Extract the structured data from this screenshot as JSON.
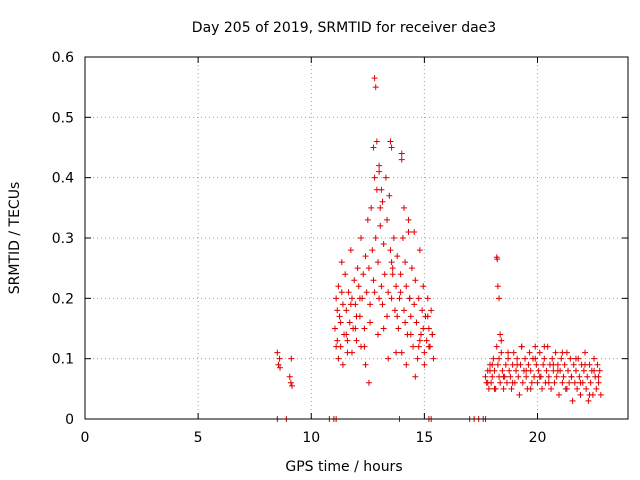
{
  "chart_data": {
    "type": "scatter",
    "title": "Day 205 of 2019, SRMTID for receiver dae3",
    "xlabel": "GPS time / hours",
    "ylabel": "SRMTID / TECUs",
    "xlim": [
      0,
      24
    ],
    "ylim": [
      0,
      0.6
    ],
    "x_ticks": [
      0,
      5,
      10,
      15,
      20
    ],
    "x_tick_labels": [
      "0",
      "5",
      "10",
      "15",
      "20"
    ],
    "y_ticks": [
      0,
      0.1,
      0.2,
      0.3,
      0.4,
      0.5,
      0.6
    ],
    "y_tick_labels": [
      "0",
      "0.1",
      "0.2",
      "0.3",
      "0.4",
      "0.5",
      "0.6"
    ],
    "grid": true,
    "marker": "+",
    "color": "#e00000",
    "series": [
      {
        "name": "SRMTID",
        "x": [
          8.5,
          8.55,
          8.6,
          8.62,
          9.05,
          9.1,
          9.12,
          9.15,
          11.05,
          11.1,
          11.15,
          11.2,
          11.25,
          11.3,
          11.35,
          11.4,
          11.45,
          11.5,
          11.55,
          11.6,
          11.65,
          11.7,
          11.75,
          11.8,
          11.85,
          11.9,
          11.95,
          12.0,
          12.05,
          12.1,
          12.15,
          12.2,
          12.25,
          12.3,
          12.35,
          12.4,
          12.45,
          12.5,
          12.55,
          12.6,
          12.65,
          12.7,
          12.75,
          12.8,
          12.85,
          12.9,
          12.95,
          13.0,
          13.05,
          13.1,
          13.15,
          13.2,
          13.25,
          13.3,
          13.35,
          13.4,
          13.45,
          13.5,
          13.55,
          13.6,
          13.65,
          13.7,
          13.75,
          13.8,
          13.85,
          13.9,
          13.95,
          14.0,
          14.05,
          14.1,
          14.15,
          14.2,
          14.25,
          14.3,
          14.35,
          14.4,
          14.45,
          14.5,
          14.55,
          14.6,
          14.65,
          14.7,
          14.75,
          14.8,
          14.85,
          14.9,
          14.95,
          15.0,
          15.05,
          15.1,
          15.15,
          15.2,
          15.25,
          15.3,
          15.35,
          15.4,
          12.8,
          12.85,
          12.9,
          13.0,
          13.05,
          13.1,
          13.5,
          13.55,
          14.0,
          14.1,
          14.3,
          11.1,
          11.2,
          11.3,
          11.4,
          11.6,
          11.8,
          12.0,
          12.2,
          12.4,
          12.6,
          12.8,
          13.0,
          13.2,
          13.4,
          13.6,
          13.8,
          14.0,
          14.2,
          14.4,
          14.6,
          14.8,
          15.0,
          15.2,
          11.15,
          11.35,
          11.55,
          11.75,
          11.95,
          12.15,
          12.35,
          12.55,
          12.75,
          12.95,
          13.15,
          13.35,
          13.55,
          13.75,
          13.95,
          14.15,
          14.35,
          14.55,
          14.75,
          14.95,
          15.15,
          15.35,
          17.7,
          17.75,
          17.8,
          17.85,
          17.9,
          17.95,
          18.0,
          18.05,
          18.1,
          18.15,
          18.2,
          18.25,
          18.3,
          18.35,
          18.4,
          18.45,
          18.5,
          18.55,
          18.6,
          18.65,
          18.7,
          18.75,
          18.8,
          18.85,
          18.9,
          18.95,
          19.0,
          19.05,
          19.1,
          19.15,
          19.2,
          19.25,
          19.3,
          19.35,
          19.4,
          19.45,
          19.5,
          19.55,
          19.6,
          19.65,
          19.7,
          19.75,
          19.8,
          19.85,
          19.9,
          19.95,
          20.0,
          20.05,
          20.1,
          20.15,
          20.2,
          20.25,
          20.3,
          20.35,
          20.4,
          20.45,
          20.5,
          20.55,
          20.6,
          20.65,
          20.7,
          20.75,
          20.8,
          20.85,
          20.9,
          20.95,
          21.0,
          21.05,
          21.1,
          21.15,
          21.2,
          21.25,
          21.3,
          21.35,
          21.4,
          21.45,
          21.5,
          21.55,
          21.6,
          21.65,
          21.7,
          21.75,
          21.8,
          21.85,
          21.9,
          21.95,
          22.0,
          22.05,
          22.1,
          22.15,
          22.2,
          22.25,
          22.3,
          22.35,
          22.4,
          22.45,
          22.5,
          22.55,
          22.6,
          22.65,
          22.7,
          22.75,
          22.8,
          18.2,
          18.22,
          18.25,
          18.3,
          18.35,
          18.4,
          17.8,
          17.9,
          18.0,
          18.1,
          18.3,
          18.5,
          18.7,
          18.9,
          19.1,
          19.3,
          19.5,
          19.7,
          19.9,
          20.1,
          20.3,
          20.5,
          20.7,
          20.9,
          21.1,
          21.3,
          21.5,
          21.7,
          21.9,
          22.1,
          22.3,
          22.5,
          22.7,
          8.5,
          8.9,
          10.8,
          11.0,
          11.1,
          13.9,
          15.2,
          15.3,
          17.0,
          17.2,
          17.4,
          17.6,
          17.7
        ],
        "y": [
          0.11,
          0.09,
          0.1,
          0.085,
          0.07,
          0.06,
          0.1,
          0.055,
          0.15,
          0.2,
          0.13,
          0.22,
          0.17,
          0.12,
          0.26,
          0.19,
          0.14,
          0.24,
          0.18,
          0.11,
          0.21,
          0.16,
          0.28,
          0.2,
          0.15,
          0.23,
          0.19,
          0.13,
          0.25,
          0.22,
          0.17,
          0.3,
          0.2,
          0.24,
          0.15,
          0.27,
          0.21,
          0.33,
          0.25,
          0.19,
          0.35,
          0.28,
          0.45,
          0.4,
          0.3,
          0.38,
          0.26,
          0.42,
          0.32,
          0.22,
          0.36,
          0.29,
          0.24,
          0.4,
          0.33,
          0.21,
          0.37,
          0.28,
          0.2,
          0.25,
          0.3,
          0.18,
          0.22,
          0.27,
          0.15,
          0.2,
          0.24,
          0.43,
          0.3,
          0.18,
          0.26,
          0.22,
          0.14,
          0.33,
          0.2,
          0.17,
          0.25,
          0.12,
          0.31,
          0.23,
          0.16,
          0.1,
          0.2,
          0.28,
          0.14,
          0.18,
          0.22,
          0.11,
          0.17,
          0.13,
          0.2,
          0.15,
          0.12,
          0.18,
          0.14,
          0.1,
          0.565,
          0.55,
          0.46,
          0.41,
          0.35,
          0.38,
          0.46,
          0.45,
          0.44,
          0.35,
          0.31,
          0.12,
          0.1,
          0.16,
          0.09,
          0.13,
          0.11,
          0.17,
          0.12,
          0.09,
          0.16,
          0.21,
          0.2,
          0.15,
          0.1,
          0.24,
          0.17,
          0.11,
          0.09,
          0.14,
          0.07,
          0.13,
          0.09,
          0.12,
          0.18,
          0.21,
          0.14,
          0.19,
          0.15,
          0.2,
          0.12,
          0.06,
          0.23,
          0.14,
          0.19,
          0.17,
          0.26,
          0.11,
          0.21,
          0.16,
          0.2,
          0.19,
          0.12,
          0.15,
          0.17,
          0.14,
          0.07,
          0.06,
          0.08,
          0.05,
          0.09,
          0.06,
          0.07,
          0.1,
          0.08,
          0.05,
          0.12,
          0.09,
          0.07,
          0.06,
          0.11,
          0.08,
          0.05,
          0.07,
          0.09,
          0.06,
          0.1,
          0.08,
          0.07,
          0.05,
          0.09,
          0.11,
          0.06,
          0.08,
          0.1,
          0.07,
          0.04,
          0.09,
          0.12,
          0.06,
          0.08,
          0.1,
          0.07,
          0.05,
          0.09,
          0.11,
          0.08,
          0.06,
          0.1,
          0.07,
          0.12,
          0.09,
          0.06,
          0.08,
          0.11,
          0.07,
          0.05,
          0.09,
          0.1,
          0.06,
          0.08,
          0.12,
          0.07,
          0.09,
          0.05,
          0.1,
          0.08,
          0.06,
          0.11,
          0.07,
          0.09,
          0.04,
          0.08,
          0.1,
          0.06,
          0.07,
          0.09,
          0.05,
          0.11,
          0.08,
          0.06,
          0.1,
          0.07,
          0.03,
          0.09,
          0.06,
          0.08,
          0.05,
          0.1,
          0.07,
          0.04,
          0.09,
          0.06,
          0.08,
          0.11,
          0.05,
          0.07,
          0.03,
          0.09,
          0.06,
          0.08,
          0.04,
          0.1,
          0.07,
          0.05,
          0.09,
          0.06,
          0.08,
          0.04,
          0.268,
          0.265,
          0.22,
          0.2,
          0.14,
          0.13,
          0.06,
          0.08,
          0.09,
          0.05,
          0.1,
          0.07,
          0.11,
          0.06,
          0.09,
          0.12,
          0.08,
          0.05,
          0.1,
          0.07,
          0.12,
          0.06,
          0.09,
          0.08,
          0.11,
          0.05,
          0.07,
          0.1,
          0.06,
          0.09,
          0.04,
          0.08,
          0.07,
          0,
          0,
          0,
          0,
          0,
          0,
          0,
          0,
          0,
          0,
          0,
          0,
          0
        ]
      }
    ]
  }
}
